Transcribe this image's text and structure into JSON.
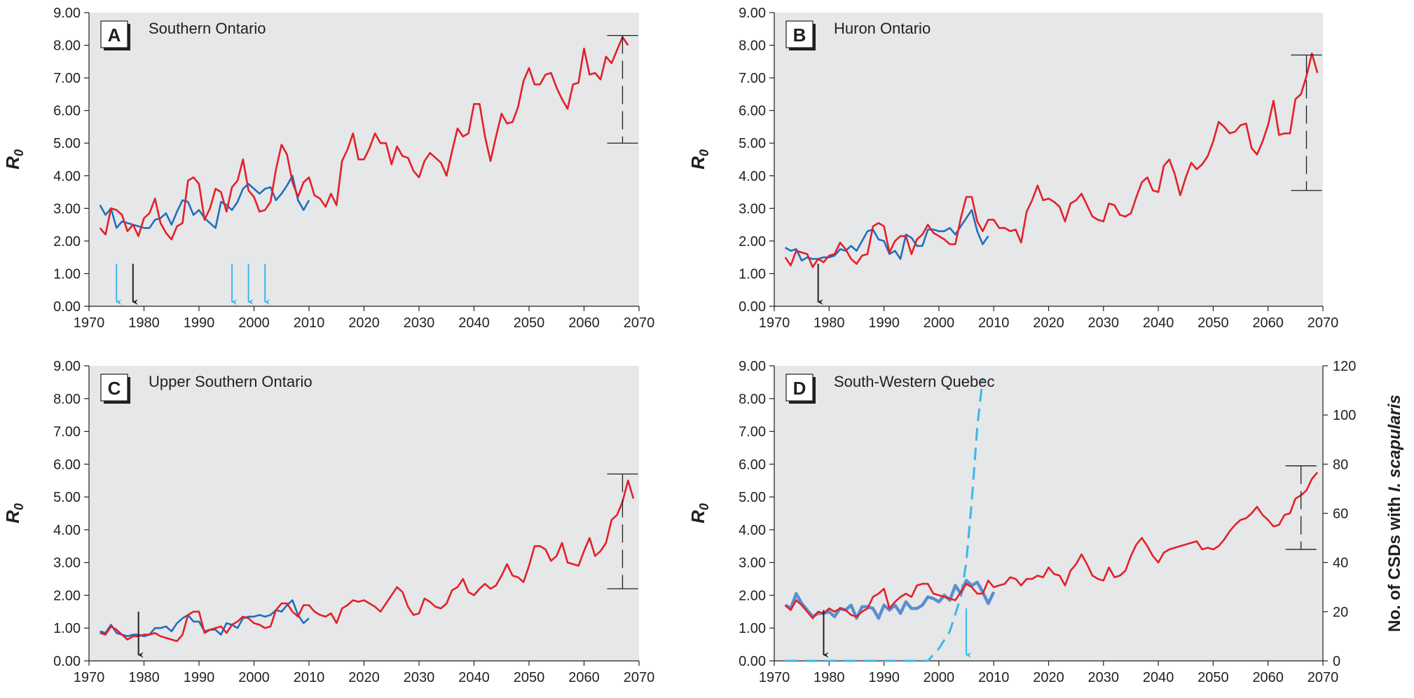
{
  "colors": {
    "observed": "#1f6fbf",
    "observed_d": "#5a8fd0",
    "projected": "#e3202a",
    "arrow_blue": "#3bb7e8",
    "arrow_black": "#231f20",
    "background": "#e6e7e8",
    "csd_curve": "#3bb7e8"
  },
  "chart_data": [
    {
      "type": "line",
      "panel": "A",
      "title": "Southern Ontario",
      "ylabel": "R",
      "ylabel_sub": "0",
      "xlim": [
        1970,
        2070
      ],
      "ylim": [
        0,
        9
      ],
      "x_ticks": [
        "1970",
        "1980",
        "1990",
        "2000",
        "2010",
        "2020",
        "2030",
        "2040",
        "2050",
        "2060",
        "2070"
      ],
      "y_ticks": [
        "0.00",
        "1.00",
        "2.00",
        "3.00",
        "4.00",
        "5.00",
        "6.00",
        "7.00",
        "8.00",
        "9.00"
      ],
      "series": [
        {
          "role": "observed",
          "x_start": 1972,
          "values": [
            3.1,
            2.8,
            3.0,
            2.4,
            2.6,
            2.55,
            2.5,
            2.45,
            2.4,
            2.4,
            2.65,
            2.7,
            2.85,
            2.5,
            2.9,
            3.25,
            3.2,
            2.8,
            2.95,
            2.7,
            2.55,
            2.4,
            3.2,
            3.1,
            2.95,
            3.2,
            3.6,
            3.75,
            3.6,
            3.45,
            3.6,
            3.65,
            3.25,
            3.45,
            3.7,
            4.0,
            3.25,
            2.95,
            3.25
          ]
        },
        {
          "role": "projected",
          "x_start": 1972,
          "values": [
            2.4,
            2.2,
            3.0,
            2.95,
            2.8,
            2.3,
            2.5,
            2.15,
            2.7,
            2.85,
            3.3,
            2.55,
            2.25,
            2.05,
            2.45,
            2.55,
            3.85,
            3.95,
            3.75,
            2.65,
            3.0,
            3.6,
            3.5,
            2.9,
            3.65,
            3.85,
            4.5,
            3.55,
            3.35,
            2.9,
            2.95,
            3.2,
            4.2,
            4.95,
            4.65,
            3.8,
            3.35,
            3.8,
            3.95,
            3.4,
            3.3,
            3.05,
            3.45,
            3.1,
            4.45,
            4.8,
            5.3,
            4.5,
            4.5,
            4.85,
            5.3,
            5.0,
            5.0,
            4.35,
            4.9,
            4.6,
            4.55,
            4.15,
            3.95,
            4.45,
            4.7,
            4.55,
            4.4,
            4.0,
            4.75,
            5.45,
            5.2,
            5.3,
            6.2,
            6.2,
            5.2,
            4.45,
            5.2,
            5.9,
            5.6,
            5.65,
            6.1,
            6.9,
            7.3,
            6.8,
            6.8,
            7.1,
            7.15,
            6.7,
            6.35,
            6.05,
            6.8,
            6.85,
            7.9,
            7.1,
            7.15,
            6.95,
            7.65,
            7.45,
            7.85,
            8.25,
            8.0
          ]
        }
      ],
      "range_bar": {
        "x": 2067,
        "low": 5.0,
        "high": 8.3
      },
      "arrows": [
        {
          "x": 1975,
          "color": "blue"
        },
        {
          "x": 1978,
          "color": "black"
        },
        {
          "x": 1996,
          "color": "blue"
        },
        {
          "x": 1999,
          "color": "blue"
        },
        {
          "x": 2002,
          "color": "blue"
        }
      ],
      "arrow_from": 1.3,
      "arrow_to": 0.0
    },
    {
      "type": "line",
      "panel": "B",
      "title": "Huron Ontario",
      "ylabel": "R",
      "ylabel_sub": "0",
      "xlim": [
        1970,
        2070
      ],
      "ylim": [
        0,
        9
      ],
      "x_ticks": [
        "1970",
        "1980",
        "1990",
        "2000",
        "2010",
        "2020",
        "2030",
        "2040",
        "2050",
        "2060",
        "2070"
      ],
      "y_ticks": [
        "0.00",
        "1.00",
        "2.00",
        "3.00",
        "4.00",
        "5.00",
        "6.00",
        "7.00",
        "8.00",
        "9.00"
      ],
      "series": [
        {
          "role": "observed",
          "x_start": 1972,
          "values": [
            1.8,
            1.7,
            1.75,
            1.4,
            1.5,
            1.45,
            1.45,
            1.5,
            1.5,
            1.55,
            1.75,
            1.7,
            1.85,
            1.7,
            2.0,
            2.3,
            2.35,
            2.05,
            2.0,
            1.6,
            1.7,
            1.45,
            2.2,
            2.1,
            1.85,
            1.85,
            2.35,
            2.35,
            2.3,
            2.3,
            2.4,
            2.2,
            2.45,
            2.7,
            2.95,
            2.3,
            1.9,
            2.15
          ]
        },
        {
          "role": "projected",
          "x_start": 1972,
          "values": [
            1.5,
            1.25,
            1.7,
            1.65,
            1.6,
            1.2,
            1.45,
            1.35,
            1.55,
            1.6,
            1.95,
            1.75,
            1.45,
            1.3,
            1.55,
            1.6,
            2.45,
            2.55,
            2.45,
            1.65,
            2.0,
            2.15,
            2.15,
            1.6,
            2.05,
            2.2,
            2.5,
            2.25,
            2.15,
            2.05,
            1.9,
            1.9,
            2.7,
            3.35,
            3.35,
            2.6,
            2.3,
            2.65,
            2.65,
            2.4,
            2.4,
            2.3,
            2.35,
            1.95,
            2.9,
            3.25,
            3.7,
            3.25,
            3.3,
            3.2,
            3.05,
            2.6,
            3.15,
            3.25,
            3.45,
            3.1,
            2.75,
            2.65,
            2.6,
            3.15,
            3.1,
            2.8,
            2.75,
            2.85,
            3.35,
            3.8,
            3.95,
            3.55,
            3.5,
            4.3,
            4.5,
            4.05,
            3.4,
            3.95,
            4.4,
            4.2,
            4.35,
            4.6,
            5.05,
            5.65,
            5.5,
            5.3,
            5.35,
            5.55,
            5.6,
            4.85,
            4.65,
            5.05,
            5.55,
            6.3,
            5.25,
            5.3,
            5.3,
            6.35,
            6.5,
            7.05,
            7.75,
            7.15
          ]
        }
      ],
      "range_bar": {
        "x": 2067,
        "low": 3.55,
        "high": 7.7
      },
      "arrows": [
        {
          "x": 1978,
          "color": "black"
        }
      ],
      "arrow_from": 1.3,
      "arrow_to": 0.0
    },
    {
      "type": "line",
      "panel": "C",
      "title": "Upper Southern Ontario",
      "ylabel": "R",
      "ylabel_sub": "0",
      "xlim": [
        1970,
        2070
      ],
      "ylim": [
        0,
        9
      ],
      "x_ticks": [
        "1970",
        "1980",
        "1990",
        "2000",
        "2010",
        "2020",
        "2030",
        "2040",
        "2050",
        "2060",
        "2070"
      ],
      "y_ticks": [
        "0.00",
        "1.00",
        "2.00",
        "3.00",
        "4.00",
        "5.00",
        "6.00",
        "7.00",
        "8.00",
        "9.00"
      ],
      "series": [
        {
          "role": "observed",
          "x_start": 1972,
          "values": [
            0.9,
            0.85,
            1.1,
            0.85,
            0.8,
            0.75,
            0.8,
            0.8,
            0.75,
            0.8,
            1.0,
            1.0,
            1.05,
            0.9,
            1.15,
            1.3,
            1.4,
            1.2,
            1.2,
            0.9,
            0.95,
            0.95,
            0.8,
            1.15,
            1.1,
            1.0,
            1.3,
            1.35,
            1.35,
            1.4,
            1.35,
            1.4,
            1.55,
            1.5,
            1.7,
            1.85,
            1.4,
            1.15,
            1.3
          ]
        },
        {
          "role": "projected",
          "x_start": 1972,
          "values": [
            0.85,
            0.8,
            1.05,
            0.95,
            0.8,
            0.65,
            0.75,
            0.75,
            0.8,
            0.8,
            0.85,
            0.75,
            0.7,
            0.65,
            0.6,
            0.8,
            1.4,
            1.5,
            1.5,
            0.85,
            0.95,
            1.0,
            1.05,
            0.85,
            1.1,
            1.2,
            1.35,
            1.3,
            1.15,
            1.1,
            1.0,
            1.05,
            1.55,
            1.75,
            1.75,
            1.5,
            1.35,
            1.7,
            1.7,
            1.5,
            1.4,
            1.35,
            1.45,
            1.15,
            1.6,
            1.7,
            1.85,
            1.8,
            1.85,
            1.75,
            1.65,
            1.5,
            1.75,
            2.0,
            2.25,
            2.1,
            1.65,
            1.4,
            1.45,
            1.9,
            1.8,
            1.65,
            1.6,
            1.75,
            2.15,
            2.25,
            2.5,
            2.1,
            2.0,
            2.2,
            2.35,
            2.2,
            2.3,
            2.6,
            2.95,
            2.6,
            2.55,
            2.4,
            2.9,
            3.5,
            3.5,
            3.4,
            3.05,
            3.2,
            3.6,
            3.0,
            2.95,
            2.9,
            3.35,
            3.75,
            3.2,
            3.35,
            3.6,
            4.3,
            4.45,
            4.85,
            5.5,
            4.95
          ]
        }
      ],
      "range_bar": {
        "x": 2067,
        "low": 2.2,
        "high": 5.7
      },
      "arrows": [
        {
          "x": 1979,
          "color": "black"
        }
      ],
      "arrow_from": 1.5,
      "arrow_to": 0.05
    },
    {
      "type": "line",
      "panel": "D",
      "title": "South-Western Quebec",
      "ylabel": "R",
      "ylabel_sub": "0",
      "y2label": "No. of CSDs with I. scapularis",
      "xlim": [
        1970,
        2070
      ],
      "ylim": [
        0,
        9
      ],
      "y2lim": [
        0,
        120
      ],
      "x_ticks": [
        "1970",
        "1980",
        "1990",
        "2000",
        "2010",
        "2020",
        "2030",
        "2040",
        "2050",
        "2060",
        "2070"
      ],
      "y_ticks": [
        "0.00",
        "1.00",
        "2.00",
        "3.00",
        "4.00",
        "5.00",
        "6.00",
        "7.00",
        "8.00",
        "9.00"
      ],
      "y2_ticks": [
        "0",
        "20",
        "40",
        "60",
        "80",
        "100",
        "120"
      ],
      "series": [
        {
          "role": "observed",
          "x_start": 1972,
          "values": [
            1.7,
            1.6,
            2.05,
            1.75,
            1.55,
            1.35,
            1.45,
            1.45,
            1.5,
            1.35,
            1.6,
            1.55,
            1.7,
            1.3,
            1.65,
            1.65,
            1.6,
            1.3,
            1.7,
            1.55,
            1.7,
            1.45,
            1.8,
            1.6,
            1.6,
            1.7,
            1.95,
            1.9,
            1.8,
            2.0,
            1.85,
            2.3,
            2.05,
            2.45,
            2.3,
            2.4,
            2.1,
            1.75,
            2.1
          ]
        },
        {
          "role": "projected",
          "x_start": 1972,
          "values": [
            1.7,
            1.55,
            1.85,
            1.7,
            1.5,
            1.3,
            1.5,
            1.45,
            1.6,
            1.5,
            1.6,
            1.55,
            1.4,
            1.35,
            1.5,
            1.6,
            1.95,
            2.05,
            2.2,
            1.6,
            1.8,
            1.95,
            2.05,
            1.95,
            2.3,
            2.35,
            2.35,
            2.05,
            2.0,
            1.95,
            1.9,
            1.85,
            2.1,
            2.35,
            2.25,
            2.05,
            2.05,
            2.45,
            2.25,
            2.3,
            2.35,
            2.55,
            2.5,
            2.3,
            2.5,
            2.5,
            2.6,
            2.55,
            2.85,
            2.65,
            2.6,
            2.3,
            2.75,
            2.95,
            3.25,
            2.95,
            2.6,
            2.5,
            2.45,
            2.85,
            2.55,
            2.6,
            2.75,
            3.2,
            3.55,
            3.75,
            3.5,
            3.2,
            3.0,
            3.3,
            3.4,
            3.45,
            3.5,
            3.55,
            3.6,
            3.65,
            3.4,
            3.45,
            3.4,
            3.5,
            3.7,
            3.95,
            4.15,
            4.3,
            4.35,
            4.5,
            4.7,
            4.45,
            4.3,
            4.1,
            4.15,
            4.45,
            4.5,
            4.95,
            5.05,
            5.2,
            5.55,
            5.75
          ]
        }
      ],
      "csd_curve": {
        "x": [
          1972,
          1975,
          1980,
          1985,
          1990,
          1995,
          1998,
          2000,
          2002,
          2004,
          2005,
          2006,
          2007,
          2008
        ],
        "values": [
          0,
          0,
          0,
          0,
          0,
          0,
          0,
          5,
          12,
          26,
          40,
          65,
          95,
          115
        ]
      },
      "range_bar": {
        "x": 2066,
        "low": 3.4,
        "high": 5.95
      },
      "arrows": [
        {
          "x": 1979,
          "color": "black"
        },
        {
          "x": 2005,
          "color": "blue"
        }
      ],
      "arrow_from": 1.55,
      "arrow_to": 0.05,
      "blue_arrow_from": 1.6
    }
  ]
}
